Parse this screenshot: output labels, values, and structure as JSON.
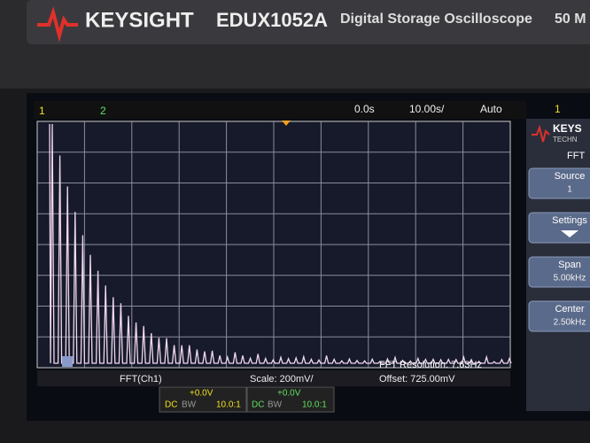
{
  "header": {
    "brand": "KEYSIGHT",
    "model": "EDUX1052A",
    "description": "Digital Storage Oscilloscope",
    "bandwidth": "50 M"
  },
  "status_bar": {
    "channel_1": "1",
    "channel_2": "2",
    "delay": "0.0s",
    "timebase": "10.00s/",
    "trigger_mode": "Auto",
    "trigger_source": "1"
  },
  "side_panel": {
    "logo": "KEYS",
    "logo_sub": "TECHN",
    "menu_title": "FFT",
    "buttons": [
      {
        "label": "Source",
        "value": "1"
      },
      {
        "label": "Settings",
        "value": null
      },
      {
        "label": "Span",
        "value": "5.00kHz"
      },
      {
        "label": "Center",
        "value": "2.50kHz"
      }
    ]
  },
  "graticule": {
    "annotation": "FFT Resolution: 7.63Hz"
  },
  "footer": {
    "function": "FFT(Ch1)",
    "scale": "Scale: 200mV/",
    "offset": "Offset: 725.00mV"
  },
  "channels": [
    {
      "offset": "+0.0V",
      "coupling": "DC",
      "bw": "BW",
      "probe": "10.0:1"
    },
    {
      "offset": "+0.0V",
      "coupling": "DC",
      "bw": "BW",
      "probe": "10.0:1"
    }
  ]
}
